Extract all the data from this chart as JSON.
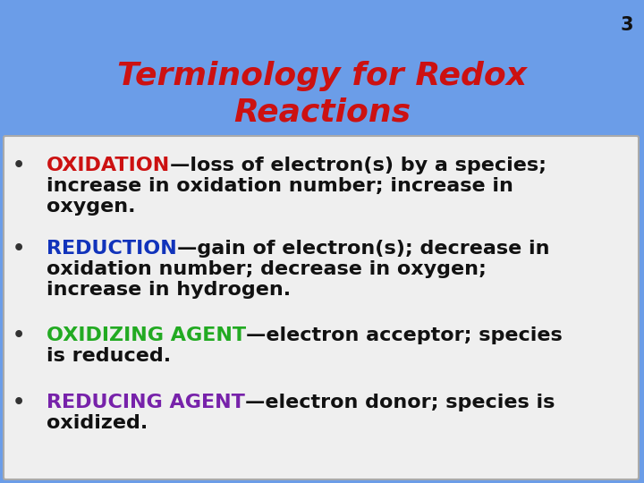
{
  "title_line1": "Terminology for Redox",
  "title_line2": "Reactions",
  "slide_number": "3",
  "bg_color": "#6b9de8",
  "title_color": "#cc1111",
  "content_bg": "#efefef",
  "content_border": "#aaaaaa",
  "slide_num_color": "#111111",
  "bullet_color": "#222222",
  "bullets": [
    {
      "keyword": "OXIDATION",
      "keyword_color": "#cc1111",
      "rest_line1": "—loss of electron(s) by a species;",
      "rest_line2": "increase in oxidation number; increase in",
      "rest_line3": "oxygen.",
      "rest_color": "#111111"
    },
    {
      "keyword": "REDUCTION",
      "keyword_color": "#1133bb",
      "rest_line1": "—gain of electron(s); decrease in",
      "rest_line2": "oxidation number; decrease in oxygen;",
      "rest_line3": "increase in hydrogen.",
      "rest_color": "#111111"
    },
    {
      "keyword": "OXIDIZING AGENT",
      "keyword_color": "#22aa22",
      "rest_line1": "—electron acceptor; species",
      "rest_line2": "is reduced.",
      "rest_line3": "",
      "rest_color": "#111111"
    },
    {
      "keyword": "REDUCING AGENT",
      "keyword_color": "#7722aa",
      "rest_line1": "—electron donor; species is",
      "rest_line2": "oxidized.",
      "rest_line3": "",
      "rest_color": "#111111"
    }
  ]
}
